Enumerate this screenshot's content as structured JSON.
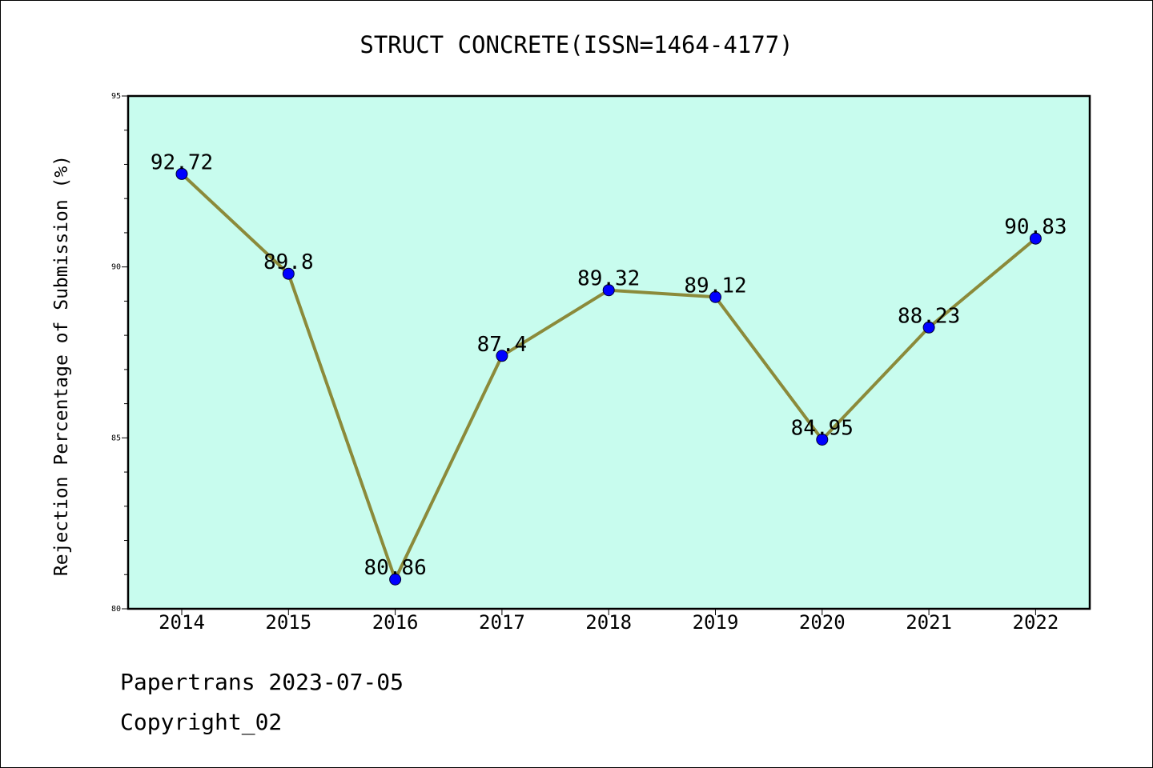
{
  "chart_data": {
    "type": "line",
    "title": "STRUCT CONCRETE(ISSN=1464-4177)",
    "xlabel": "",
    "ylabel": "Rejection Percentage of Submission (%)",
    "categories": [
      "2014",
      "2015",
      "2016",
      "2017",
      "2018",
      "2019",
      "2020",
      "2021",
      "2022"
    ],
    "series": [
      {
        "values": [
          92.72,
          89.8,
          80.86,
          87.4,
          89.32,
          89.12,
          84.95,
          88.23,
          90.83
        ]
      }
    ],
    "data_labels": [
      "92.72",
      "89.8",
      "80.86",
      "87.4",
      "89.32",
      "89.12",
      "84.95",
      "88.23",
      "90.83"
    ],
    "ylim": [
      80,
      95
    ],
    "yticks": [
      80,
      85,
      90,
      95
    ],
    "grid": false,
    "colors": {
      "plot_background": "#c8fcee",
      "line": "#8b8a3a",
      "marker": "#0000ff"
    }
  },
  "footer": {
    "line1": "Papertrans 2023-07-05",
    "line2": "Copyright_02"
  }
}
